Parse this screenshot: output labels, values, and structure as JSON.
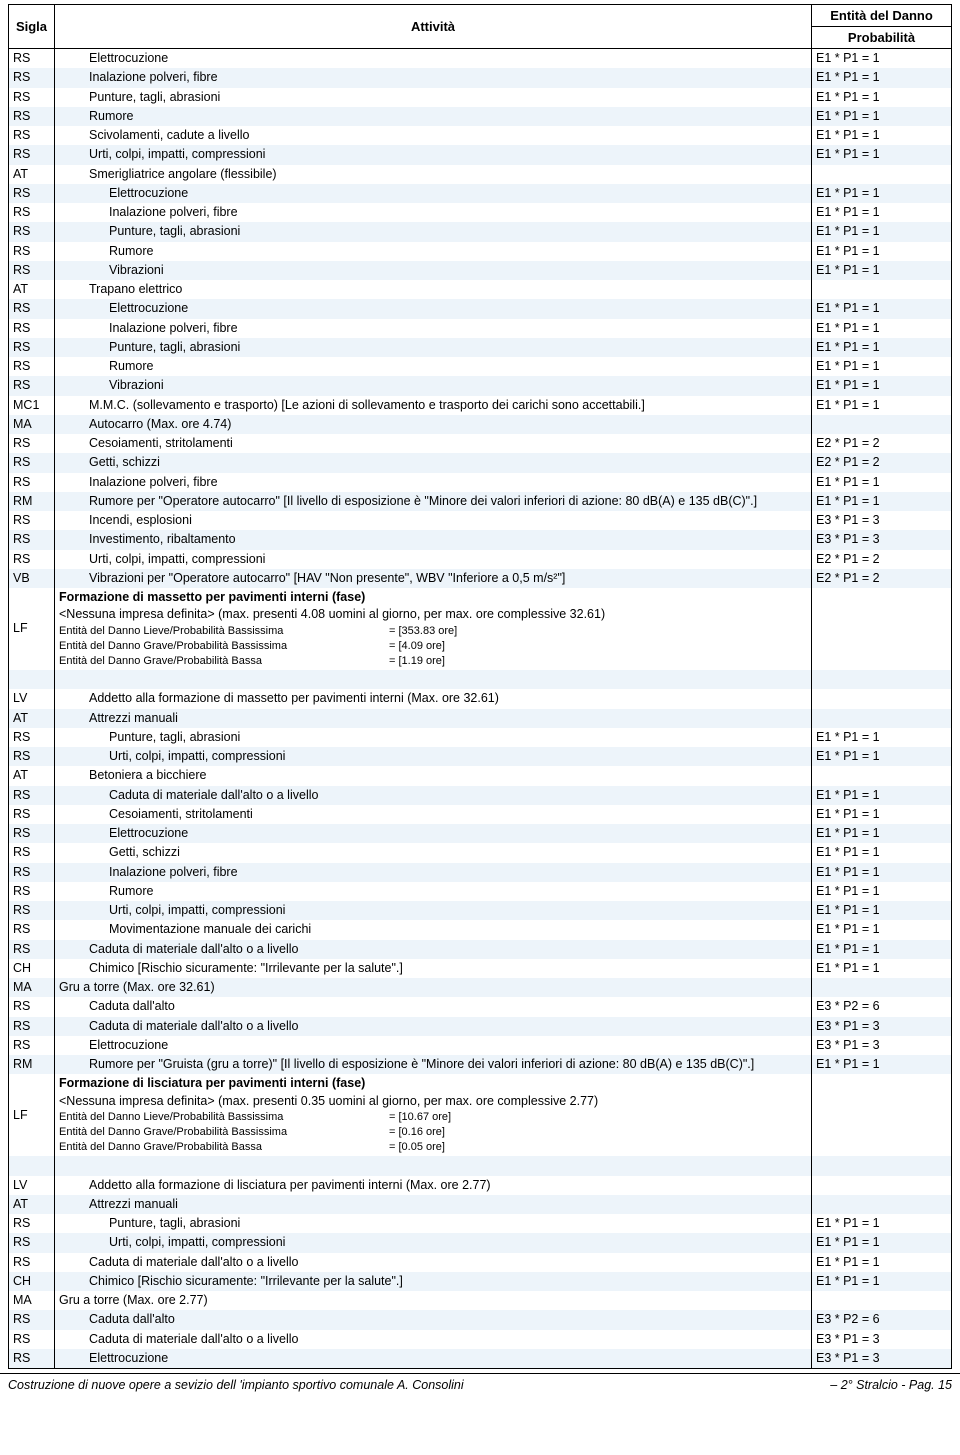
{
  "header": {
    "sigla": "Sigla",
    "attivita": "Attività",
    "entita_l1": "Entità del Danno",
    "entita_l2": "Probabilità"
  },
  "colors": {
    "band_even": "#ffffff",
    "band_odd": "#edf4fa",
    "border": "#000000",
    "text": "#000000"
  },
  "rows": [
    {
      "sigla": "RS",
      "ind": 1,
      "text": "Elettrocuzione",
      "ent": "E1 * P1 = 1"
    },
    {
      "sigla": "RS",
      "ind": 1,
      "text": "Inalazione polveri, fibre",
      "ent": "E1 * P1 = 1"
    },
    {
      "sigla": "RS",
      "ind": 1,
      "text": "Punture, tagli, abrasioni",
      "ent": "E1 * P1 = 1"
    },
    {
      "sigla": "RS",
      "ind": 1,
      "text": "Rumore",
      "ent": "E1 * P1 = 1"
    },
    {
      "sigla": "RS",
      "ind": 1,
      "text": "Scivolamenti, cadute a livello",
      "ent": "E1 * P1 = 1"
    },
    {
      "sigla": "RS",
      "ind": 1,
      "text": "Urti, colpi, impatti, compressioni",
      "ent": "E1 * P1 = 1"
    },
    {
      "sigla": "AT",
      "ind": 1,
      "text": "Smerigliatrice angolare (flessibile)",
      "ent": ""
    },
    {
      "sigla": "RS",
      "ind": 2,
      "text": "Elettrocuzione",
      "ent": "E1 * P1 = 1"
    },
    {
      "sigla": "RS",
      "ind": 2,
      "text": "Inalazione polveri, fibre",
      "ent": "E1 * P1 = 1"
    },
    {
      "sigla": "RS",
      "ind": 2,
      "text": "Punture, tagli, abrasioni",
      "ent": "E1 * P1 = 1"
    },
    {
      "sigla": "RS",
      "ind": 2,
      "text": "Rumore",
      "ent": "E1 * P1 = 1"
    },
    {
      "sigla": "RS",
      "ind": 2,
      "text": "Vibrazioni",
      "ent": "E1 * P1 = 1"
    },
    {
      "sigla": "AT",
      "ind": 1,
      "text": "Trapano elettrico",
      "ent": ""
    },
    {
      "sigla": "RS",
      "ind": 2,
      "text": "Elettrocuzione",
      "ent": "E1 * P1 = 1"
    },
    {
      "sigla": "RS",
      "ind": 2,
      "text": "Inalazione polveri, fibre",
      "ent": "E1 * P1 = 1"
    },
    {
      "sigla": "RS",
      "ind": 2,
      "text": "Punture, tagli, abrasioni",
      "ent": "E1 * P1 = 1"
    },
    {
      "sigla": "RS",
      "ind": 2,
      "text": "Rumore",
      "ent": "E1 * P1 = 1"
    },
    {
      "sigla": "RS",
      "ind": 2,
      "text": "Vibrazioni",
      "ent": "E1 * P1 = 1"
    },
    {
      "sigla": "MC1",
      "ind": 1,
      "text": "M.M.C. (sollevamento e trasporto) [Le azioni di sollevamento e trasporto dei carichi sono accettabili.]",
      "ent": "E1 * P1 = 1"
    },
    {
      "sigla": "MA",
      "ind": 1,
      "text": "Autocarro  (Max. ore 4.74)",
      "ent": ""
    },
    {
      "sigla": "RS",
      "ind": 1,
      "text": "Cesoiamenti, stritolamenti",
      "ent": "E2 * P1 = 2"
    },
    {
      "sigla": "RS",
      "ind": 1,
      "text": "Getti, schizzi",
      "ent": "E2 * P1 = 2"
    },
    {
      "sigla": "RS",
      "ind": 1,
      "text": "Inalazione polveri, fibre",
      "ent": "E1 * P1 = 1"
    },
    {
      "sigla": "RM",
      "ind": 1,
      "text": "Rumore per \"Operatore autocarro\" [Il livello di esposizione è \"Minore dei valori inferiori di azione: 80 dB(A) e 135 dB(C)\".]",
      "ent": "E1 * P1 = 1"
    },
    {
      "sigla": "RS",
      "ind": 1,
      "text": "Incendi, esplosioni",
      "ent": "E3 * P1 = 3"
    },
    {
      "sigla": "RS",
      "ind": 1,
      "text": "Investimento, ribaltamento",
      "ent": "E3 * P1 = 3"
    },
    {
      "sigla": "RS",
      "ind": 1,
      "text": "Urti, colpi, impatti, compressioni",
      "ent": "E2 * P1 = 2"
    },
    {
      "sigla": "VB",
      "ind": 1,
      "text": "Vibrazioni per \"Operatore autocarro\" [HAV \"Non presente\", WBV \"Inferiore a 0,5 m/s²\"]",
      "ent": "E2 * P1 = 2"
    },
    {
      "sigla": "LF",
      "lf": true,
      "title": "Formazione di massetto per pavimenti interni (fase)",
      "sub": "<Nessuna impresa definita>  (max. presenti 4.08 uomini al giorno, per max. ore complessive 32.61)",
      "lines": [
        {
          "lbl": "Entità del Danno Lieve/Probabilità Bassissima",
          "val": "= [353.83 ore]"
        },
        {
          "lbl": "Entità del Danno Grave/Probabilità Bassissima",
          "val": "= [4.09 ore]"
        },
        {
          "lbl": "Entità del Danno Grave/Probabilità Bassa",
          "val": "= [1.19 ore]"
        }
      ],
      "ent": ""
    },
    {
      "blank": true
    },
    {
      "sigla": "LV",
      "ind": 1,
      "text": "Addetto alla formazione di massetto per pavimenti interni  (Max. ore 32.61)",
      "ent": ""
    },
    {
      "sigla": "AT",
      "ind": 1,
      "text": "Attrezzi manuali",
      "ent": ""
    },
    {
      "sigla": "RS",
      "ind": 2,
      "text": "Punture, tagli, abrasioni",
      "ent": "E1 * P1 = 1"
    },
    {
      "sigla": "RS",
      "ind": 2,
      "text": "Urti, colpi, impatti, compressioni",
      "ent": "E1 * P1 = 1"
    },
    {
      "sigla": "AT",
      "ind": 1,
      "text": "Betoniera a bicchiere",
      "ent": ""
    },
    {
      "sigla": "RS",
      "ind": 2,
      "text": "Caduta di materiale dall'alto o a livello",
      "ent": "E1 * P1 = 1"
    },
    {
      "sigla": "RS",
      "ind": 2,
      "text": "Cesoiamenti, stritolamenti",
      "ent": "E1 * P1 = 1"
    },
    {
      "sigla": "RS",
      "ind": 2,
      "text": "Elettrocuzione",
      "ent": "E1 * P1 = 1"
    },
    {
      "sigla": "RS",
      "ind": 2,
      "text": "Getti, schizzi",
      "ent": "E1 * P1 = 1"
    },
    {
      "sigla": "RS",
      "ind": 2,
      "text": "Inalazione polveri, fibre",
      "ent": "E1 * P1 = 1"
    },
    {
      "sigla": "RS",
      "ind": 2,
      "text": "Rumore",
      "ent": "E1 * P1 = 1"
    },
    {
      "sigla": "RS",
      "ind": 2,
      "text": "Urti, colpi, impatti, compressioni",
      "ent": "E1 * P1 = 1"
    },
    {
      "sigla": "RS",
      "ind": 2,
      "text": "Movimentazione manuale dei carichi",
      "ent": "E1 * P1 = 1"
    },
    {
      "sigla": "RS",
      "ind": 1,
      "text": "Caduta di materiale dall'alto o a livello",
      "ent": "E1 * P1 = 1"
    },
    {
      "sigla": "CH",
      "ind": 1,
      "text": "Chimico [Rischio sicuramente: \"Irrilevante per la salute\".]",
      "ent": "E1 * P1 = 1"
    },
    {
      "sigla": "MA",
      "ind": 0,
      "text": "Gru a torre  (Max. ore 32.61)",
      "ent": ""
    },
    {
      "sigla": "RS",
      "ind": 1,
      "text": "Caduta dall'alto",
      "ent": "E3 * P2 = 6"
    },
    {
      "sigla": "RS",
      "ind": 1,
      "text": "Caduta di materiale dall'alto o a livello",
      "ent": "E3 * P1 = 3"
    },
    {
      "sigla": "RS",
      "ind": 1,
      "text": "Elettrocuzione",
      "ent": "E3 * P1 = 3"
    },
    {
      "sigla": "RM",
      "ind": 1,
      "text": "Rumore per \"Gruista (gru a torre)\" [Il livello di esposizione è \"Minore dei valori inferiori di azione: 80 dB(A) e 135 dB(C)\".]",
      "ent": "E1 * P1 = 1"
    },
    {
      "sigla": "LF",
      "lf": true,
      "title": "Formazione di lisciatura per pavimenti interni (fase)",
      "sub": "<Nessuna impresa definita>  (max. presenti 0.35 uomini al giorno, per max. ore complessive 2.77)",
      "lines": [
        {
          "lbl": "Entità del Danno Lieve/Probabilità Bassissima",
          "val": "= [10.67 ore]"
        },
        {
          "lbl": "Entità del Danno Grave/Probabilità Bassissima",
          "val": "= [0.16 ore]"
        },
        {
          "lbl": "Entità del Danno Grave/Probabilità Bassa",
          "val": "= [0.05 ore]"
        }
      ],
      "ent": ""
    },
    {
      "blank": true
    },
    {
      "sigla": "LV",
      "ind": 1,
      "text": "Addetto alla formazione di lisciatura per pavimenti interni  (Max. ore 2.77)",
      "ent": ""
    },
    {
      "sigla": "AT",
      "ind": 1,
      "text": "Attrezzi manuali",
      "ent": ""
    },
    {
      "sigla": "RS",
      "ind": 2,
      "text": "Punture, tagli, abrasioni",
      "ent": "E1 * P1 = 1"
    },
    {
      "sigla": "RS",
      "ind": 2,
      "text": "Urti, colpi, impatti, compressioni",
      "ent": "E1 * P1 = 1"
    },
    {
      "sigla": "RS",
      "ind": 1,
      "text": "Caduta di materiale dall'alto o a livello",
      "ent": "E1 * P1 = 1"
    },
    {
      "sigla": "CH",
      "ind": 1,
      "text": "Chimico [Rischio sicuramente: \"Irrilevante per la salute\".]",
      "ent": "E1 * P1 = 1"
    },
    {
      "sigla": "MA",
      "ind": 0,
      "text": "Gru a torre  (Max. ore 2.77)",
      "ent": ""
    },
    {
      "sigla": "RS",
      "ind": 1,
      "text": "Caduta dall'alto",
      "ent": "E3 * P2 = 6"
    },
    {
      "sigla": "RS",
      "ind": 1,
      "text": "Caduta di materiale dall'alto o a livello",
      "ent": "E3 * P1 = 3"
    },
    {
      "sigla": "RS",
      "ind": 1,
      "text": "Elettrocuzione",
      "ent": "E3 * P1 = 3"
    }
  ],
  "footer": {
    "left": "Costruzione di nuove opere a sevizio dell     'impianto sportivo comunale A. Consolini",
    "right": "– 2° Stralcio - Pag.   15"
  }
}
